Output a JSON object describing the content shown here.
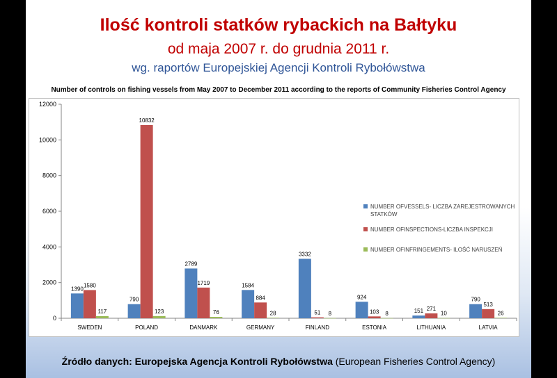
{
  "slide": {
    "title": "Ilość kontroli statków rybackich na Bałtyku",
    "subtitle": "od maja 2007 r. do grudnia 2011 r.",
    "subtitle2": "wg. raportów Europejskiej Agencji Kontroli Rybołówstwa",
    "source_label": "Źródło danych: Europejska Agencja Kontroli Rybołówstwa",
    "source_paren": "(European Fisheries Control Agency)"
  },
  "chart_data": {
    "type": "bar",
    "title": "Number of controls on fishing vessels from May 2007 to December 2011 according to the reports of Community Fisheries Control Agency",
    "categories": [
      "SWEDEN",
      "POLAND",
      "DANMARK",
      "GERMANY",
      "FINLAND",
      "ESTONIA",
      "LITHUANIA",
      "LATVIA"
    ],
    "series": [
      {
        "name": "NUMBER OFVESSELS- LICZBA ZAREJESTROWANYCH STATKÓW",
        "color": "#4f81bd",
        "values": [
          1390,
          790,
          2789,
          1584,
          3332,
          924,
          151,
          790
        ]
      },
      {
        "name": "NUMBER OFINSPECTIONS-LICZBA INSPEKCJI",
        "color": "#c0504d",
        "values": [
          1580,
          10832,
          1719,
          884,
          51,
          103,
          271,
          513
        ]
      },
      {
        "name": "NUMBER OFINFRINGEMENTS- ILOŚĆ NARUSZEŃ",
        "color": "#9bbb59",
        "values": [
          117,
          123,
          76,
          28,
          8,
          8,
          10,
          26
        ]
      }
    ],
    "ylim": [
      0,
      12000
    ],
    "yticks": [
      0,
      2000,
      4000,
      6000,
      8000,
      10000,
      12000
    ],
    "grid": false,
    "legend": "right"
  }
}
